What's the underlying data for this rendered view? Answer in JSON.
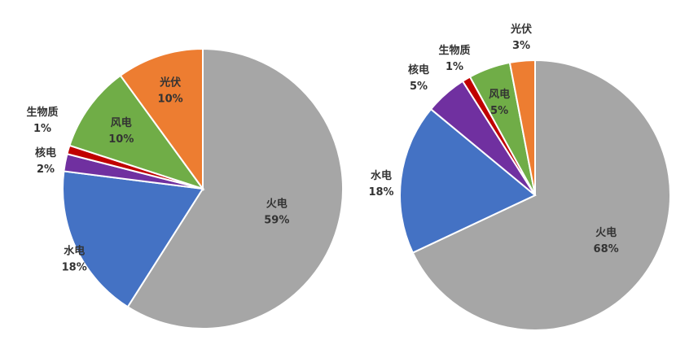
{
  "chart_data": [
    {
      "type": "pie",
      "title": "",
      "slices": [
        {
          "name": "火电",
          "value": 59,
          "label": "59%",
          "color": "#a6a6a6"
        },
        {
          "name": "水电",
          "value": 18,
          "label": "18%",
          "color": "#4472c4"
        },
        {
          "name": "核电",
          "value": 2,
          "label": "2%",
          "color": "#7030a0"
        },
        {
          "name": "生物质",
          "value": 1,
          "label": "1%",
          "color": "#c00000"
        },
        {
          "name": "风电",
          "value": 10,
          "label": "10%",
          "color": "#70ad47"
        },
        {
          "name": "光伏",
          "value": 10,
          "label": "10%",
          "color": "#ed7d31"
        }
      ]
    },
    {
      "type": "pie",
      "title": "",
      "slices": [
        {
          "name": "火电",
          "value": 68,
          "label": "68%",
          "color": "#a6a6a6"
        },
        {
          "name": "水电",
          "value": 18,
          "label": "18%",
          "color": "#4472c4"
        },
        {
          "name": "核电",
          "value": 5,
          "label": "5%",
          "color": "#7030a0"
        },
        {
          "name": "生物质",
          "value": 1,
          "label": "1%",
          "color": "#c00000"
        },
        {
          "name": "风电",
          "value": 5,
          "label": "5%",
          "color": "#70ad47"
        },
        {
          "name": "光伏",
          "value": 3,
          "label": "3%",
          "color": "#ed7d31"
        }
      ]
    }
  ]
}
